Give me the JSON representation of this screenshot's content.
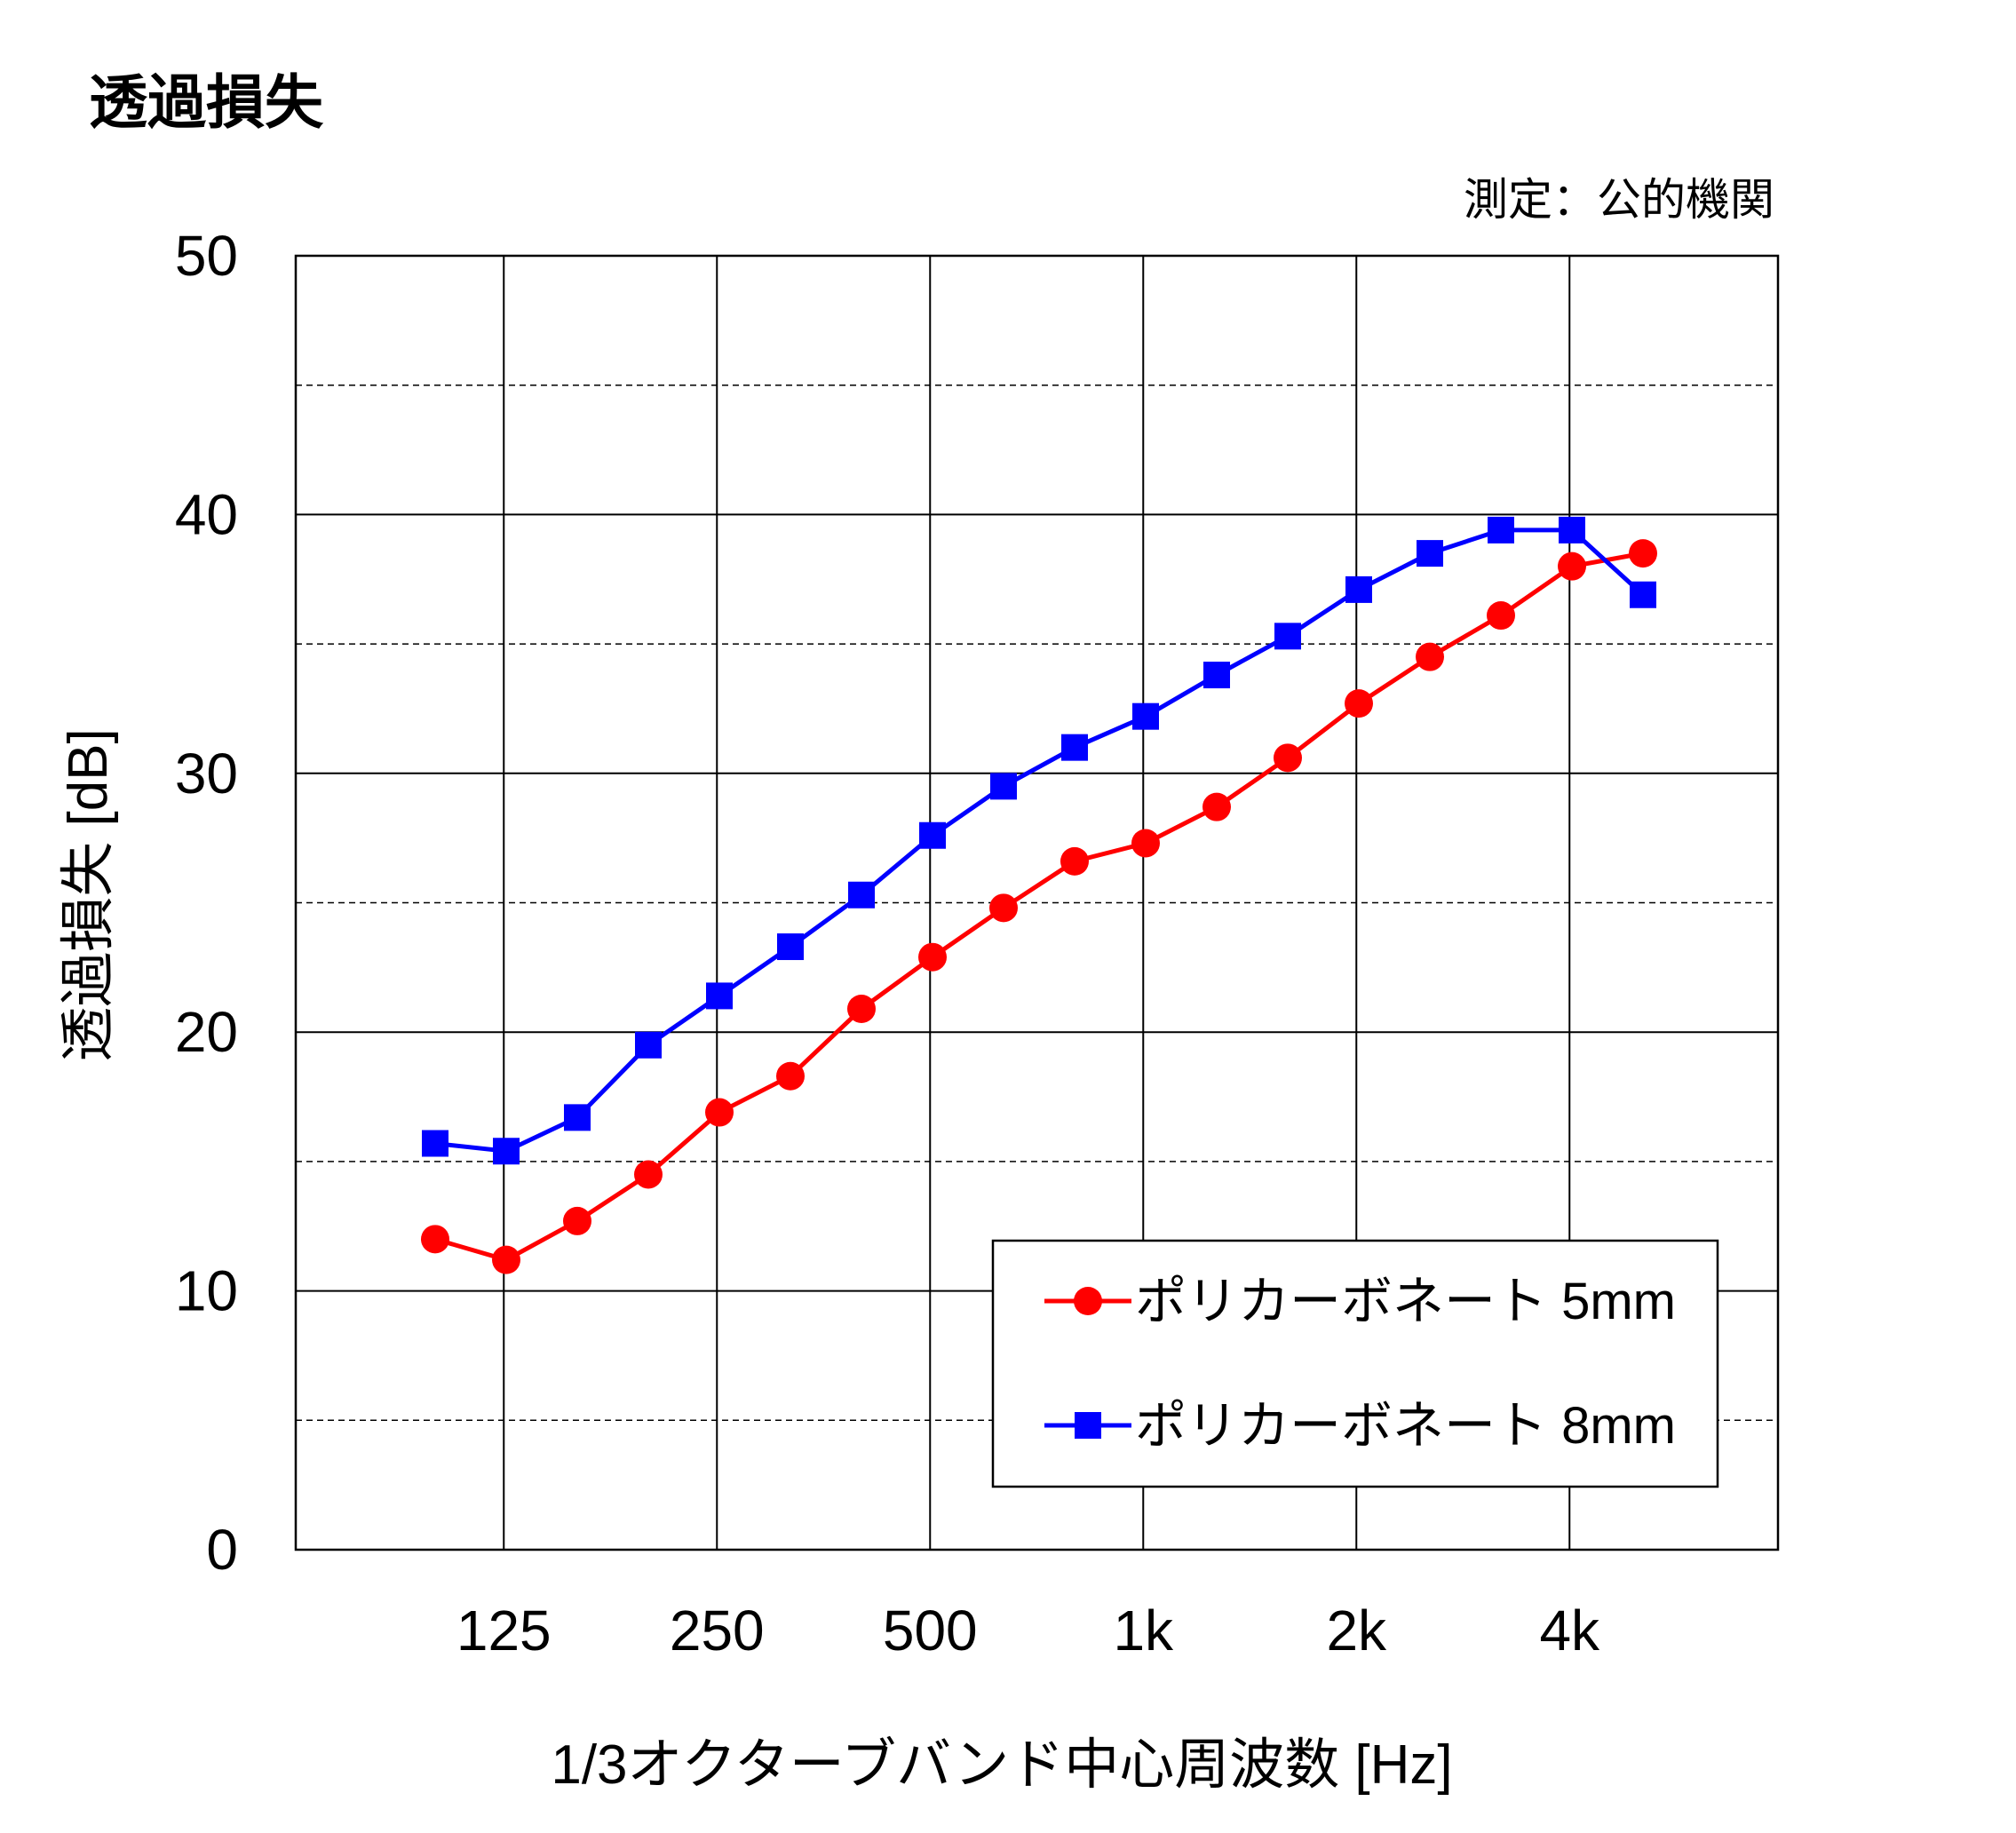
{
  "chart_data": {
    "type": "line",
    "title": "透過損失",
    "note": "測定：公的機関",
    "xlabel": "1/3オクターブバンド中心周波数 [Hz]",
    "ylabel": "透過損失 [dB]",
    "x": [
      100,
      125,
      160,
      200,
      250,
      315,
      400,
      500,
      630,
      800,
      1000,
      1250,
      1600,
      2000,
      2500,
      3150,
      4000,
      5000
    ],
    "x_tick_labels": [
      {
        "at": 125,
        "label": "125"
      },
      {
        "at": 250,
        "label": "250"
      },
      {
        "at": 500,
        "label": "500"
      },
      {
        "at": 1000,
        "label": "1k"
      },
      {
        "at": 2000,
        "label": "2k"
      },
      {
        "at": 4000,
        "label": "4k"
      }
    ],
    "y_ticks": [
      0,
      10,
      20,
      30,
      40,
      50
    ],
    "ylim": [
      0,
      50
    ],
    "minor_grid_y": [
      5,
      15,
      25,
      35,
      45
    ],
    "grid": true,
    "legend_position": "lower-right",
    "series": [
      {
        "name": "ポリカーボネート 5mm",
        "color": "#ff0000",
        "marker": "circle",
        "values": [
          12.0,
          11.2,
          12.7,
          14.5,
          16.9,
          18.3,
          20.9,
          22.9,
          24.8,
          26.6,
          27.3,
          28.7,
          30.6,
          32.7,
          34.5,
          36.1,
          38.0,
          38.5
        ]
      },
      {
        "name": "ポリカーボネート 8mm",
        "color": "#0000ff",
        "marker": "square",
        "values": [
          15.7,
          15.4,
          16.7,
          19.5,
          21.4,
          23.3,
          25.3,
          27.6,
          29.5,
          31.0,
          32.2,
          33.8,
          35.3,
          37.1,
          38.5,
          39.4,
          39.4,
          36.9
        ]
      }
    ]
  }
}
